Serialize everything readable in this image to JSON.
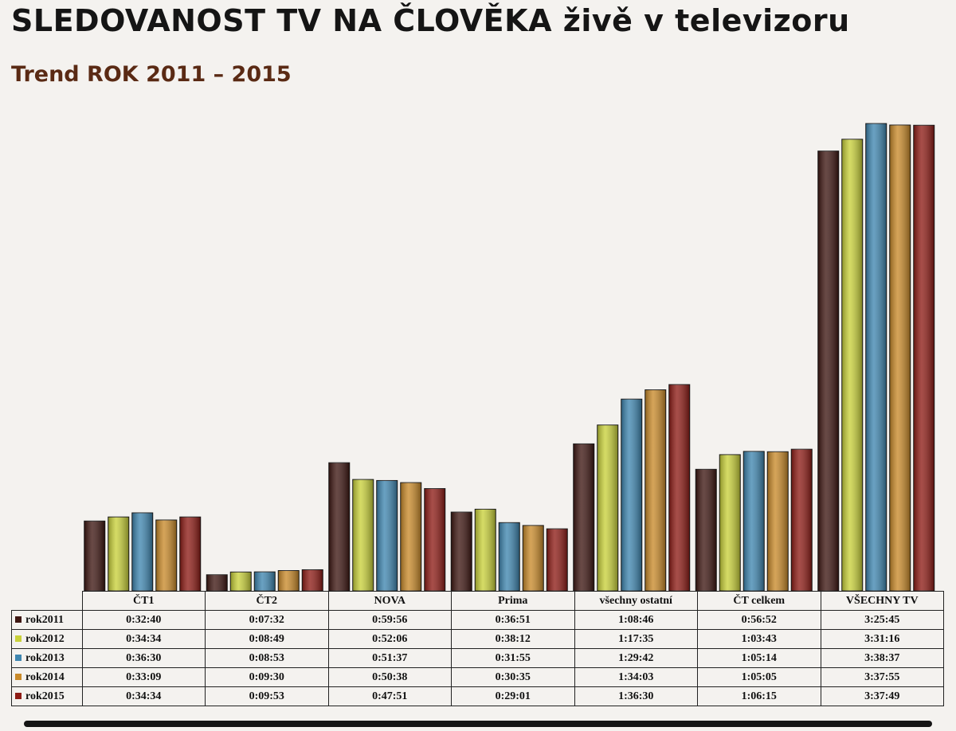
{
  "header": {
    "title": "SLEDOVANOST TV NA ČLOVĚKA živě v televizoru",
    "subtitle": "Trend ROK 2011 – 2015"
  },
  "chart_data": {
    "type": "bar",
    "categories": [
      "ČT1",
      "ČT2",
      "NOVA",
      "Prima",
      "všechny ostatní",
      "ČT celkem",
      "VŠECHNY TV"
    ],
    "series": [
      {
        "name": "rok2011",
        "color": "#3e1712",
        "labels": [
          "0:32:40",
          "0:07:32",
          "0:59:56",
          "0:36:51",
          "1:08:46",
          "0:56:52",
          "3:25:45"
        ]
      },
      {
        "name": "rok2012",
        "color": "#c9d13a",
        "labels": [
          "0:34:34",
          "0:08:49",
          "0:52:06",
          "0:38:12",
          "1:17:35",
          "1:03:43",
          "3:31:16"
        ]
      },
      {
        "name": "rok2013",
        "color": "#3f86b0",
        "labels": [
          "0:36:30",
          "0:08:53",
          "0:51:37",
          "0:31:55",
          "1:29:42",
          "1:05:14",
          "3:38:37"
        ]
      },
      {
        "name": "rok2014",
        "color": "#c98a2a",
        "labels": [
          "0:33:09",
          "0:09:30",
          "0:50:38",
          "0:30:35",
          "1:34:03",
          "1:05:05",
          "3:37:55"
        ]
      },
      {
        "name": "rok2015",
        "color": "#8e1c16",
        "labels": [
          "0:34:34",
          "0:09:53",
          "0:47:51",
          "0:29:01",
          "1:36:30",
          "1:06:15",
          "3:37:49"
        ]
      }
    ],
    "value_format": "h:mm:ss",
    "xlabel": "",
    "ylabel": "",
    "grid": false,
    "legend": "table-left"
  }
}
